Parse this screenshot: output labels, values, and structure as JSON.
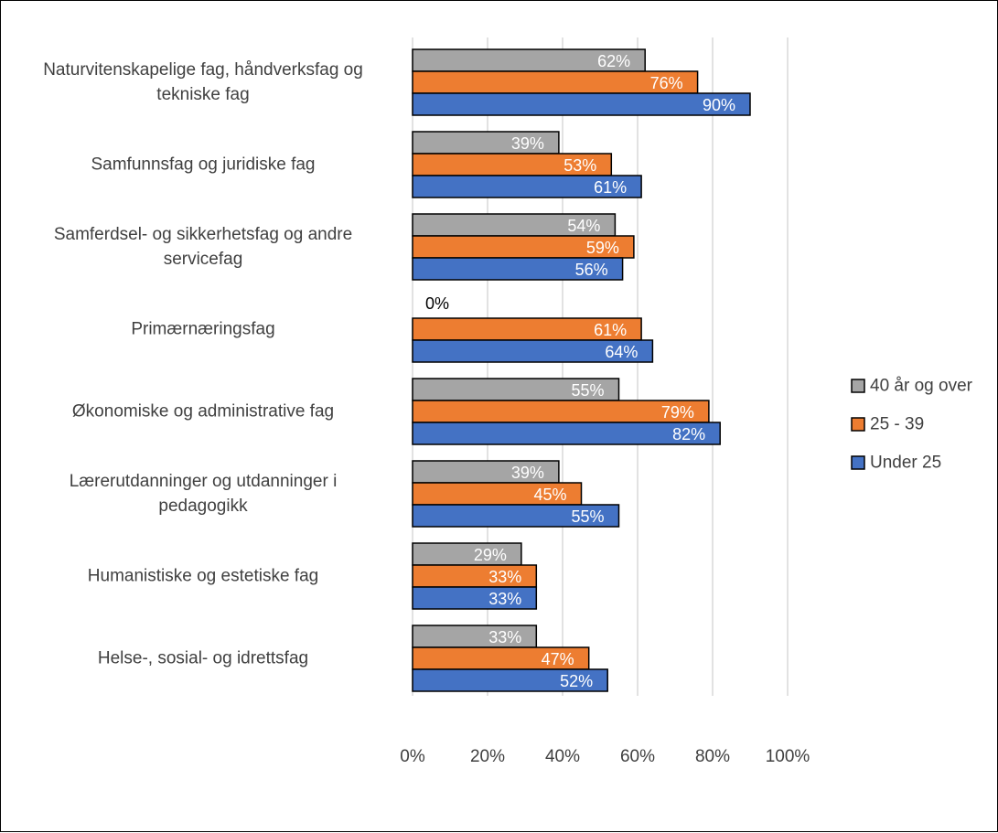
{
  "chart_data": {
    "type": "bar",
    "orientation": "horizontal",
    "title": "",
    "xlabel": "",
    "ylabel": "",
    "xlim": [
      0,
      100
    ],
    "x_ticks": [
      0,
      20,
      40,
      60,
      80,
      100
    ],
    "x_tick_labels": [
      "0%",
      "20%",
      "40%",
      "60%",
      "80%",
      "100%"
    ],
    "grid": "vertical",
    "legend_position": "right",
    "categories": [
      "Naturvitenskapelige fag, håndverksfag og tekniske fag",
      "Samfunnsfag og juridiske fag",
      "Samferdsel- og sikkerhetsfag og andre servicefag",
      "Primærnæringsfag",
      "Økonomiske og administrative fag",
      "Lærerutdanninger og utdanninger i pedagogikk",
      "Humanistiske og estetiske fag",
      "Helse-, sosial- og idrettsfag"
    ],
    "series": [
      {
        "name": "40 år og over",
        "color": "#a5a5a5",
        "values": [
          62,
          39,
          54,
          0,
          55,
          39,
          29,
          33
        ],
        "labels": [
          "62%",
          "39%",
          "54%",
          "0%",
          "55%",
          "39%",
          "29%",
          "33%"
        ]
      },
      {
        "name": "25 - 39",
        "color": "#ed7d31",
        "values": [
          76,
          53,
          59,
          61,
          79,
          45,
          33,
          47
        ],
        "labels": [
          "76%",
          "53%",
          "59%",
          "61%",
          "79%",
          "45%",
          "33%",
          "47%"
        ]
      },
      {
        "name": "Under 25",
        "color": "#4472c4",
        "values": [
          90,
          61,
          56,
          64,
          82,
          55,
          33,
          52
        ],
        "labels": [
          "90%",
          "61%",
          "56%",
          "64%",
          "82%",
          "55%",
          "33%",
          "52%"
        ]
      }
    ],
    "category_label_lines": [
      [
        "Naturvitenskapelige fag, håndverksfag og",
        "tekniske fag"
      ],
      [
        "Samfunnsfag og juridiske fag"
      ],
      [
        "Samferdsel- og sikkerhetsfag og andre",
        "servicefag"
      ],
      [
        "Primærnæringsfag"
      ],
      [
        "Økonomiske og administrative fag"
      ],
      [
        "Lærerutdanninger og utdanninger i",
        "pedagogikk"
      ],
      [
        "Humanistiske og estetiske fag"
      ],
      [
        "Helse-, sosial- og idrettsfag"
      ]
    ],
    "legend_order": [
      0,
      1,
      2
    ]
  }
}
